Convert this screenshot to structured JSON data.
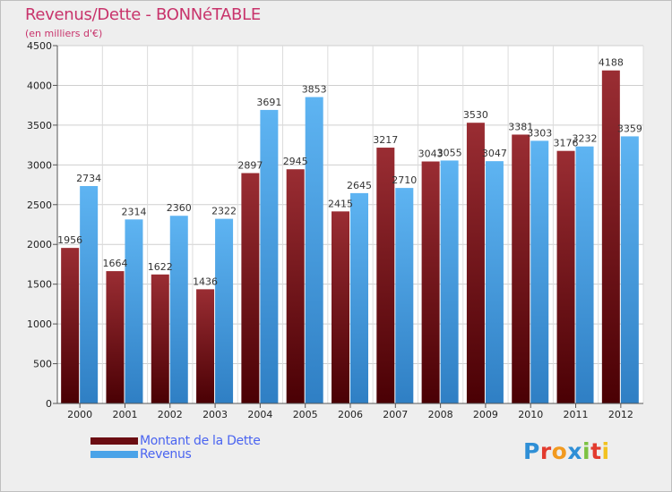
{
  "header": {
    "title": "Revenus/Dette - BONNéTABLE",
    "subtitle": "(en milliers d'€)"
  },
  "legend": {
    "items": [
      {
        "label": "Montant de la Dette",
        "color": "#6b0d12"
      },
      {
        "label": "Revenus",
        "color": "#4aa3e8"
      }
    ]
  },
  "logo": {
    "letters": [
      "P",
      "r",
      "o",
      "x",
      "i",
      "t",
      "i"
    ],
    "colors": [
      "#2f8fd6",
      "#e23b2e",
      "#f29a1f",
      "#2f8fd6",
      "#7cc242",
      "#e23b2e",
      "#f2c21f"
    ]
  },
  "chart_data": {
    "type": "bar",
    "title": "Revenus/Dette - BONNéTABLE",
    "subtitle": "(en milliers d'€)",
    "xlabel": "",
    "ylabel": "",
    "categories": [
      "2000",
      "2001",
      "2002",
      "2003",
      "2004",
      "2005",
      "2006",
      "2007",
      "2008",
      "2009",
      "2010",
      "2011",
      "2012"
    ],
    "series": [
      {
        "name": "Montant de la Dette",
        "color": "#6b0d12",
        "values": [
          1956,
          1664,
          1622,
          1436,
          2897,
          2945,
          2415,
          3217,
          3043,
          3530,
          3381,
          3176,
          4188
        ]
      },
      {
        "name": "Revenus",
        "color": "#4aa3e8",
        "values": [
          2734,
          2314,
          2360,
          2322,
          3691,
          3853,
          2645,
          2710,
          3055,
          3047,
          3303,
          3232,
          3359
        ]
      }
    ],
    "ylim": [
      0,
      4500
    ],
    "yticks": [
      0,
      500,
      1000,
      1500,
      2000,
      2500,
      3000,
      3500,
      4000,
      4500
    ],
    "grid": true,
    "legend_position": "bottom-left"
  }
}
